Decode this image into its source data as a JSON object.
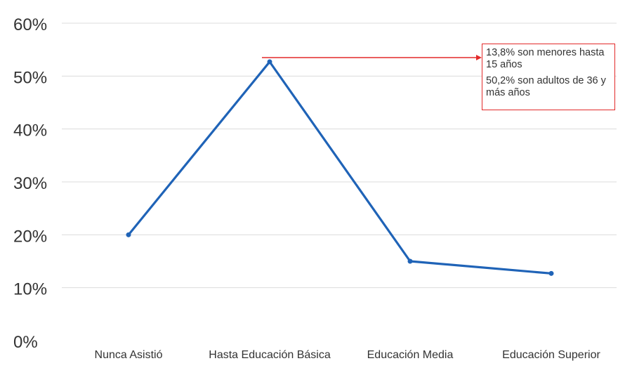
{
  "chart_data": {
    "type": "line",
    "categories": [
      "Nunca Asistió",
      "Hasta Educación Básica",
      "Educación Media",
      "Educación Superior"
    ],
    "series": [
      {
        "values": [
          20,
          52.7,
          15,
          12.7
        ],
        "color": "#1f63b7"
      }
    ],
    "y_ticks": [
      "0%",
      "10%",
      "20%",
      "30%",
      "40%",
      "50%",
      "60%"
    ],
    "ylim": [
      0,
      60
    ],
    "grid": true,
    "annotation": {
      "lines": [
        "13,8% son menores hasta 15 años",
        "50,2% son adultos de 36 y más años"
      ],
      "color": "#e32a2a"
    }
  }
}
